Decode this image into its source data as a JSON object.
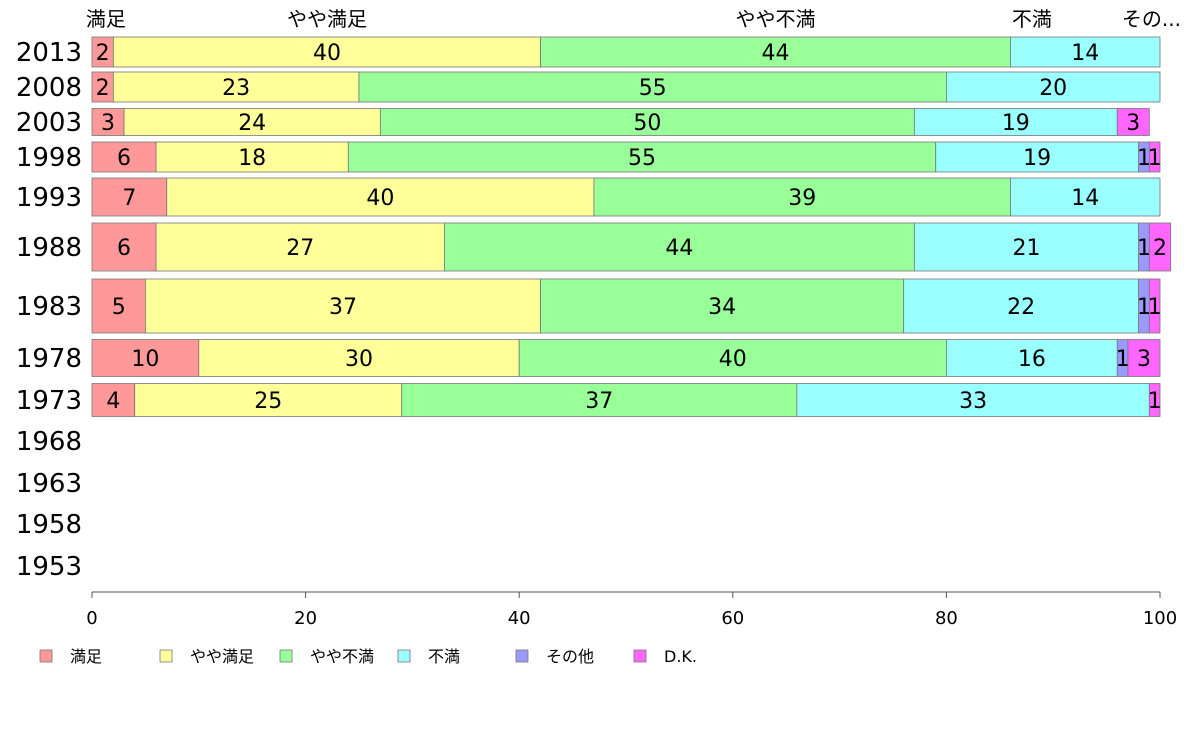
{
  "chart_data": {
    "type": "bar",
    "orientation": "horizontal",
    "stacked": true,
    "categories": [
      "2013",
      "2008",
      "2003",
      "1998",
      "1993",
      "1988",
      "1983",
      "1978",
      "1973",
      "1968",
      "1963",
      "1958",
      "1953"
    ],
    "xlim": [
      0,
      100
    ],
    "x_ticks": [
      "0",
      "20",
      "40",
      "60",
      "80",
      "100"
    ],
    "top_labels": [
      "満足",
      "やや満足",
      "やや不満",
      "不満",
      "その..."
    ],
    "legend_position": "bottom",
    "series": [
      {
        "name": "満足",
        "color": "#ff9999",
        "values": [
          2,
          2,
          3,
          6,
          7,
          6,
          5,
          10,
          4,
          null,
          null,
          null,
          null
        ],
        "labels": [
          "2",
          "2",
          "3",
          "6",
          "7",
          "6",
          "5",
          "10",
          "4",
          "",
          "",
          "",
          ""
        ]
      },
      {
        "name": "やや満足",
        "color": "#ffff99",
        "values": [
          40,
          23,
          24,
          18,
          40,
          27,
          37,
          30,
          25,
          null,
          null,
          null,
          null
        ],
        "labels": [
          "40",
          "23",
          "24",
          "18",
          "40",
          "27",
          "37",
          "30",
          "25",
          "",
          "",
          "",
          ""
        ]
      },
      {
        "name": "やや不満",
        "color": "#99ff99",
        "values": [
          44,
          55,
          50,
          55,
          39,
          44,
          34,
          40,
          37,
          null,
          null,
          null,
          null
        ],
        "labels": [
          "44",
          "55",
          "50",
          "55",
          "39",
          "44",
          "34",
          "40",
          "37",
          "",
          "",
          "",
          ""
        ]
      },
      {
        "name": "不満",
        "color": "#99ffff",
        "values": [
          14,
          20,
          19,
          19,
          14,
          21,
          22,
          16,
          33,
          null,
          null,
          null,
          null
        ],
        "labels": [
          "14",
          "20",
          "19",
          "19",
          "14",
          "21",
          "22",
          "16",
          "33",
          "",
          "",
          "",
          ""
        ]
      },
      {
        "name": "その他",
        "color": "#9999ff",
        "values": [
          0,
          0,
          0,
          1,
          0,
          1,
          1,
          1,
          0,
          null,
          null,
          null,
          null
        ],
        "labels": [
          "",
          "",
          "",
          "1",
          "",
          "1",
          "1",
          "1",
          "",
          "",
          "",
          "",
          ""
        ]
      },
      {
        "name": "D.K.",
        "color": "#ff66ff",
        "values": [
          0,
          0,
          3,
          1,
          0,
          2,
          1,
          3,
          1,
          null,
          null,
          null,
          null
        ],
        "labels": [
          "",
          "",
          "3",
          "1",
          "",
          "2",
          "1",
          "3",
          "1",
          "",
          "",
          "",
          ""
        ]
      }
    ]
  }
}
